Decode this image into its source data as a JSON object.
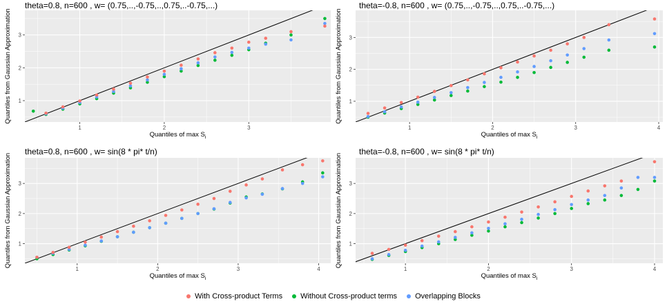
{
  "chart_data": [
    {
      "type": "scatter",
      "title": "theta=0.8, n=600 , w= (0.75,..,-0.75,..,0.75,..-0.75,...)",
      "xlabel": "Quantiles of max S",
      "xlabel_sub": "i",
      "ylabel": "Quantiles from Gaussian Approximation",
      "xlim": [
        0.35,
        3.97
      ],
      "ylim": [
        0.35,
        3.75
      ],
      "xticks": [
        1,
        2,
        3
      ],
      "yticks": [
        1,
        2,
        3
      ],
      "series": [
        {
          "name": "With Cross-product Terms",
          "x": [
            0.6,
            0.8,
            1.0,
            1.2,
            1.4,
            1.6,
            1.8,
            2.0,
            2.2,
            2.4,
            2.6,
            2.8,
            3.0,
            3.2,
            3.5,
            3.9
          ],
          "y": [
            0.62,
            0.81,
            0.99,
            1.17,
            1.35,
            1.53,
            1.72,
            1.9,
            2.08,
            2.27,
            2.46,
            2.6,
            2.78,
            2.9,
            3.1,
            3.27
          ]
        },
        {
          "name": "Without Cross-product terms",
          "x": [
            0.45,
            0.6,
            0.8,
            1.0,
            1.2,
            1.4,
            1.6,
            1.8,
            2.0,
            2.2,
            2.4,
            2.6,
            2.8,
            3.0,
            3.2,
            3.5,
            3.9
          ],
          "y": [
            0.68,
            0.58,
            0.74,
            0.9,
            1.06,
            1.23,
            1.39,
            1.56,
            1.73,
            1.9,
            2.07,
            2.23,
            2.38,
            2.55,
            2.75,
            3.0,
            3.5
          ]
        },
        {
          "name": "Overlapping Blocks",
          "x": [
            0.6,
            0.8,
            1.0,
            1.2,
            1.4,
            1.6,
            1.8,
            2.0,
            2.2,
            2.4,
            2.6,
            2.8,
            3.0,
            3.2,
            3.5,
            3.9
          ],
          "y": [
            0.6,
            0.77,
            0.94,
            1.11,
            1.28,
            1.45,
            1.63,
            1.8,
            1.97,
            2.15,
            2.33,
            2.47,
            2.6,
            2.72,
            2.85,
            3.35
          ]
        }
      ]
    },
    {
      "type": "scatter",
      "title": "theta=-0.8, n=600 , w= (0.75,..,-0.75,..,0.75,..-0.75,...)",
      "xlabel": "Quantiles of max S",
      "xlabel_sub": "i",
      "ylabel": "Quantiles from Gaussian Approximation",
      "xlim": [
        0.35,
        4.05
      ],
      "ylim": [
        0.35,
        3.85
      ],
      "xticks": [
        1,
        2,
        3,
        4
      ],
      "yticks": [
        1,
        2,
        3
      ],
      "series": [
        {
          "name": "With Cross-product Terms",
          "x": [
            0.5,
            0.7,
            0.9,
            1.1,
            1.3,
            1.5,
            1.7,
            1.9,
            2.1,
            2.3,
            2.5,
            2.7,
            2.9,
            3.1,
            3.4,
            3.95
          ],
          "y": [
            0.62,
            0.79,
            0.96,
            1.13,
            1.31,
            1.49,
            1.67,
            1.86,
            2.05,
            2.23,
            2.42,
            2.6,
            2.8,
            3.0,
            3.4,
            3.58
          ]
        },
        {
          "name": "Without Cross-product terms",
          "x": [
            0.5,
            0.7,
            0.9,
            1.1,
            1.3,
            1.5,
            1.7,
            1.9,
            2.1,
            2.3,
            2.5,
            2.7,
            2.9,
            3.1,
            3.4,
            3.95
          ],
          "y": [
            0.5,
            0.63,
            0.77,
            0.9,
            1.04,
            1.18,
            1.32,
            1.46,
            1.6,
            1.75,
            1.9,
            2.06,
            2.22,
            2.38,
            2.6,
            2.7
          ]
        },
        {
          "name": "Overlapping Blocks",
          "x": [
            0.5,
            0.7,
            0.9,
            1.1,
            1.3,
            1.5,
            1.7,
            1.9,
            2.1,
            2.3,
            2.5,
            2.7,
            2.9,
            3.1,
            3.4,
            3.95
          ],
          "y": [
            0.52,
            0.67,
            0.82,
            0.97,
            1.12,
            1.27,
            1.43,
            1.59,
            1.75,
            1.92,
            2.09,
            2.27,
            2.45,
            2.65,
            2.92,
            3.12
          ]
        }
      ]
    },
    {
      "type": "scatter",
      "title": "theta=0.8, n=600 , w= sin(8 * pi* t/n)",
      "xlabel": "Quantiles of max S",
      "xlabel_sub": "i",
      "ylabel": "Quantiles from Gaussian Approximation",
      "xlim": [
        0.35,
        4.15
      ],
      "ylim": [
        0.35,
        3.85
      ],
      "xticks": [
        1,
        2,
        3,
        4
      ],
      "yticks": [
        1,
        2,
        3
      ],
      "series": [
        {
          "name": "With Cross-product Terms",
          "x": [
            0.5,
            0.7,
            0.9,
            1.1,
            1.3,
            1.5,
            1.7,
            1.9,
            2.1,
            2.3,
            2.5,
            2.7,
            2.9,
            3.1,
            3.3,
            3.55,
            3.8,
            4.05
          ],
          "y": [
            0.55,
            0.71,
            0.88,
            1.05,
            1.22,
            1.4,
            1.58,
            1.76,
            1.94,
            2.12,
            2.31,
            2.5,
            2.74,
            2.95,
            3.15,
            3.45,
            3.62,
            3.75
          ]
        },
        {
          "name": "Without Cross-product terms",
          "x": [
            0.5,
            0.7,
            0.9,
            1.1,
            1.3,
            1.5,
            1.7,
            1.9,
            2.1,
            2.3,
            2.5,
            2.7,
            2.9,
            3.1,
            3.3,
            3.55,
            3.8,
            4.05
          ],
          "y": [
            0.5,
            0.64,
            0.79,
            0.93,
            1.08,
            1.23,
            1.38,
            1.53,
            1.68,
            1.84,
            2.0,
            2.15,
            2.35,
            2.55,
            2.65,
            2.82,
            3.05,
            3.35
          ]
        },
        {
          "name": "Overlapping Blocks",
          "x": [
            0.5,
            0.7,
            0.9,
            1.1,
            1.3,
            1.5,
            1.7,
            1.9,
            2.1,
            2.3,
            2.5,
            2.7,
            2.9,
            3.1,
            3.3,
            3.55,
            3.8,
            4.05
          ],
          "y": [
            0.55,
            0.68,
            0.81,
            0.95,
            1.09,
            1.23,
            1.38,
            1.53,
            1.68,
            1.84,
            2.0,
            2.16,
            2.37,
            2.52,
            2.64,
            2.83,
            3.0,
            3.22
          ]
        }
      ]
    },
    {
      "type": "scatter",
      "title": "theta=-0.8, n=600 , w= sin(8 * pi* t/n)",
      "xlabel": "Quantiles of max S",
      "xlabel_sub": "i",
      "ylabel": "Quantiles from Gaussian Approximation",
      "xlim": [
        0.4,
        4.1
      ],
      "ylim": [
        0.35,
        3.85
      ],
      "xticks": [
        1,
        2,
        3,
        4
      ],
      "yticks": [
        1,
        2,
        3
      ],
      "series": [
        {
          "name": "With Cross-product Terms",
          "x": [
            0.6,
            0.8,
            1.0,
            1.2,
            1.4,
            1.6,
            1.8,
            2.0,
            2.2,
            2.4,
            2.6,
            2.8,
            3.0,
            3.2,
            3.4,
            3.6,
            4.0
          ],
          "y": [
            0.68,
            0.81,
            0.95,
            1.1,
            1.25,
            1.4,
            1.56,
            1.72,
            1.88,
            2.05,
            2.22,
            2.39,
            2.57,
            2.75,
            2.92,
            3.08,
            3.72
          ]
        },
        {
          "name": "Without Cross-product terms",
          "x": [
            0.6,
            0.8,
            1.0,
            1.2,
            1.4,
            1.6,
            1.8,
            2.0,
            2.2,
            2.4,
            2.6,
            2.8,
            3.0,
            3.2,
            3.4,
            3.6,
            3.8,
            4.0
          ],
          "y": [
            0.48,
            0.61,
            0.74,
            0.87,
            1.0,
            1.14,
            1.28,
            1.42,
            1.56,
            1.7,
            1.85,
            2.0,
            2.17,
            2.33,
            2.45,
            2.6,
            2.8,
            3.08
          ]
        },
        {
          "name": "Overlapping Blocks",
          "x": [
            0.6,
            0.8,
            1.0,
            1.2,
            1.4,
            1.6,
            1.8,
            2.0,
            2.2,
            2.4,
            2.6,
            2.8,
            3.0,
            3.2,
            3.4,
            3.6,
            3.8,
            4.0
          ],
          "y": [
            0.5,
            0.64,
            0.78,
            0.92,
            1.06,
            1.21,
            1.36,
            1.51,
            1.66,
            1.81,
            1.97,
            2.13,
            2.3,
            2.45,
            2.6,
            2.85,
            3.2,
            3.2
          ]
        }
      ]
    }
  ],
  "legend": {
    "items": [
      {
        "label": "With Cross-product Terms",
        "color": "#F8766D"
      },
      {
        "label": "Without Cross-product terms",
        "color": "#00BA38"
      },
      {
        "label": "Overlapping Blocks",
        "color": "#619CFF"
      }
    ]
  },
  "colors": {
    "panel_bg": "#EBEBEB",
    "grid": "#FFFFFF",
    "reference_line": "#000000"
  }
}
